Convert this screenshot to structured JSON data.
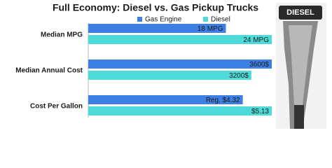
{
  "chart_data": {
    "type": "bar",
    "orientation": "horizontal",
    "title": "Full Economy: Diesel vs. Gas Pickup Trucks",
    "categories": [
      "Median MPG",
      "Median Annual Cost",
      "Cost Per Gallon"
    ],
    "series": [
      {
        "name": "Gas Engine",
        "color": "#3d7fe3",
        "values": [
          18,
          3600,
          4.32
        ],
        "value_labels": [
          "18 MPG",
          "3600$",
          "Reg. $4.32"
        ]
      },
      {
        "name": "Diesel",
        "color": "#4fdada",
        "values": [
          24,
          3200,
          5.13
        ],
        "value_labels": [
          "24 MPG",
          "3200$",
          "$5.13"
        ]
      }
    ],
    "image_text": "DIESEL"
  }
}
